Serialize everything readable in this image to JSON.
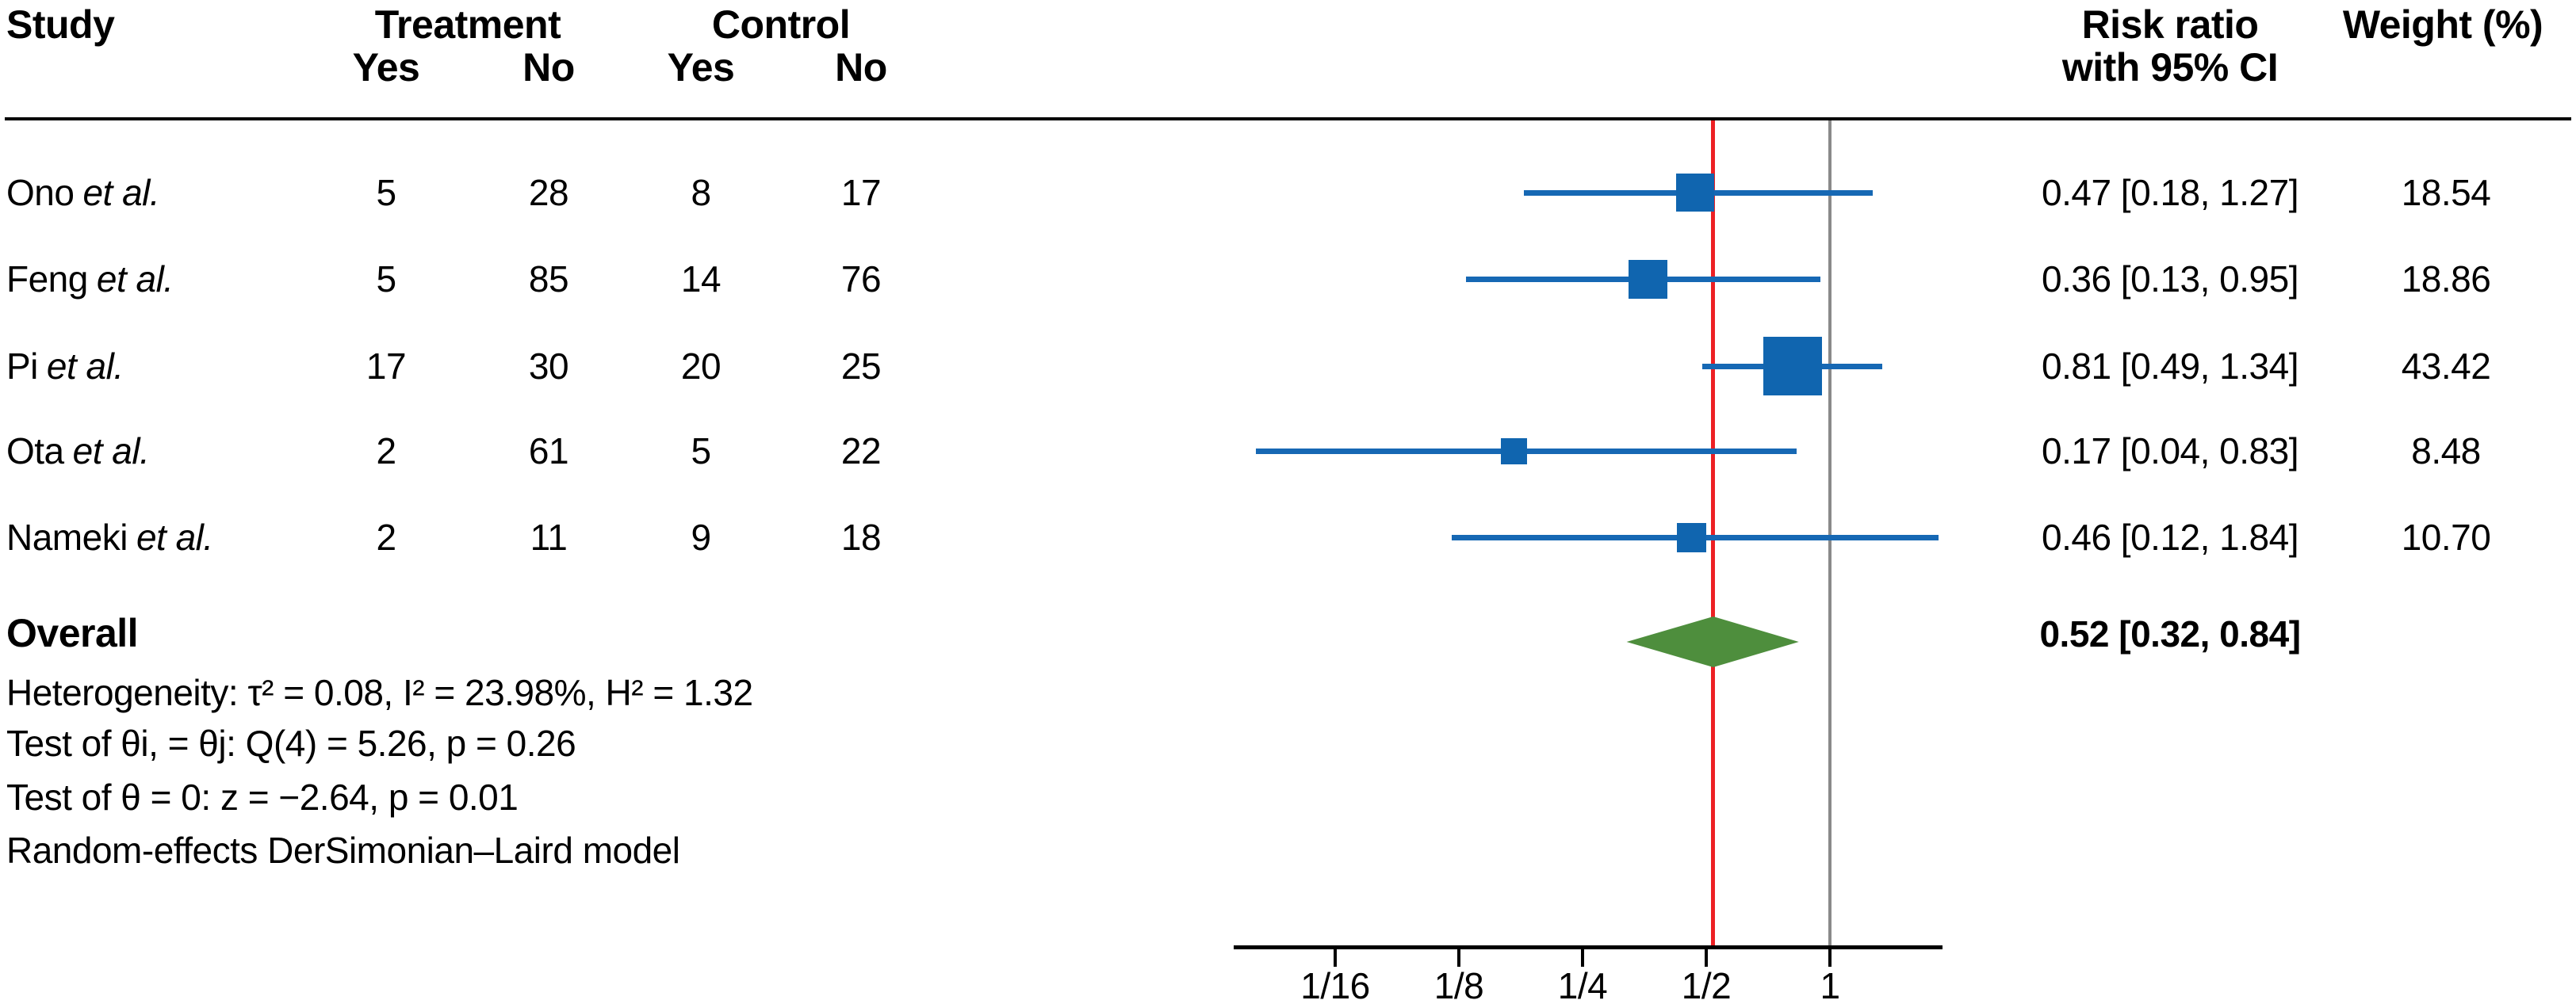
{
  "header": {
    "study": "Study",
    "treatment": "Treatment",
    "control": "Control",
    "treatment_yes": "Yes",
    "treatment_no": "No",
    "control_yes": "Yes",
    "control_no": "No",
    "risk_ratio_line1": "Risk ratio",
    "risk_ratio_line2": "with 95% CI",
    "weight": "Weight (%)"
  },
  "overall_stats": {
    "label": "Overall",
    "heterogeneity": "Heterogeneity: τ² = 0.08, I² = 23.98%, H² = 1.32",
    "homogeneity_test": "Test of θi, = θj: Q(4) = 5.26, p = 0.26",
    "significance_test": "Test of θ = 0: z = −2.64, p = 0.01",
    "model": "Random-effects DerSimonian–Laird model"
  },
  "colors": {
    "marker_blue": "#1065af",
    "ci_line_blue": "#1668b4",
    "diamond_green": "#4e8e3d",
    "ref_line_gray": "#8a8a8a",
    "pooled_line_red": "#ed2024",
    "axis_black": "#000000"
  },
  "chart_data": {
    "type": "forest",
    "effect_measure": "Risk ratio",
    "x_scale": "log2",
    "x_ticks": [
      0.0625,
      0.125,
      0.25,
      0.5,
      1
    ],
    "x_tick_labels": [
      "1/16",
      "1/8",
      "1/4",
      "1/2",
      "1"
    ],
    "ref_line": 1,
    "pooled_line": 0.52,
    "legend": "none",
    "studies": [
      {
        "label": "Ono et al.",
        "name": "Ono",
        "suffix": "et al.",
        "treatment_yes": 5,
        "treatment_no": 28,
        "control_yes": 8,
        "control_no": 17,
        "rr": 0.47,
        "ci": [
          0.18,
          1.27
        ],
        "rr_ci_text": "0.47 [0.18, 1.27]",
        "weight_pct": 18.54,
        "weight_text": "18.54"
      },
      {
        "label": "Feng et al.",
        "name": "Feng",
        "suffix": "et al.",
        "treatment_yes": 5,
        "treatment_no": 85,
        "control_yes": 14,
        "control_no": 76,
        "rr": 0.36,
        "ci": [
          0.13,
          0.95
        ],
        "rr_ci_text": "0.36 [0.13, 0.95]",
        "weight_pct": 18.86,
        "weight_text": "18.86"
      },
      {
        "label": "Pi et al.",
        "name": "Pi",
        "suffix": "et al.",
        "treatment_yes": 17,
        "treatment_no": 30,
        "control_yes": 20,
        "control_no": 25,
        "rr": 0.81,
        "ci": [
          0.49,
          1.34
        ],
        "rr_ci_text": "0.81 [0.49, 1.34]",
        "weight_pct": 43.42,
        "weight_text": "43.42"
      },
      {
        "label": "Ota et al.",
        "name": "Ota",
        "suffix": "et al.",
        "treatment_yes": 2,
        "treatment_no": 61,
        "control_yes": 5,
        "control_no": 22,
        "rr": 0.17,
        "ci": [
          0.04,
          0.83
        ],
        "rr_ci_text": "0.17 [0.04, 0.83]",
        "weight_pct": 8.48,
        "weight_text": "8.48"
      },
      {
        "label": "Nameki et al.",
        "name": "Nameki",
        "suffix": "et al.",
        "treatment_yes": 2,
        "treatment_no": 11,
        "control_yes": 9,
        "control_no": 18,
        "rr": 0.46,
        "ci": [
          0.12,
          1.84
        ],
        "rr_ci_text": "0.46 [0.12, 1.84]",
        "weight_pct": 10.7,
        "weight_text": "10.70"
      }
    ],
    "overall": {
      "rr": 0.52,
      "ci": [
        0.32,
        0.84
      ],
      "rr_ci_text": "0.52 [0.32, 0.84]"
    }
  }
}
